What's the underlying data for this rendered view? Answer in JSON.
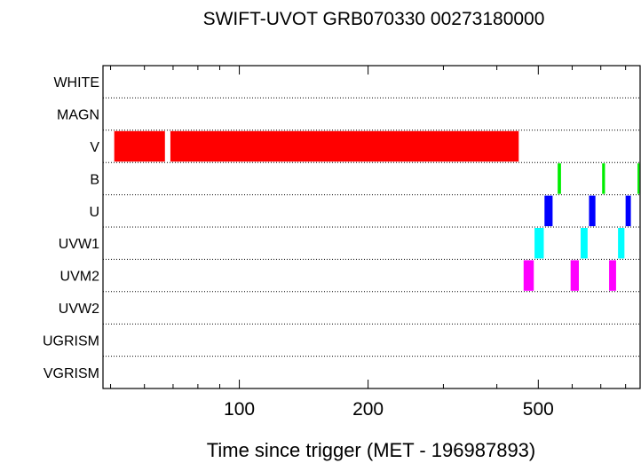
{
  "chart_data": {
    "type": "timeline",
    "title": "SWIFT-UVOT GRB070330 00273180000",
    "xlabel": "Time since trigger (MET - 196987893)",
    "x_scale": "log",
    "xlim": [
      48,
      865
    ],
    "x_ticks": [
      100,
      200,
      500
    ],
    "x_tick_labels": [
      "100",
      "200",
      "500"
    ],
    "rows": [
      "WHITE",
      "MAGN",
      "V",
      "B",
      "U",
      "UVW1",
      "UVM2",
      "UVW2",
      "UGRISM",
      "VGRISM"
    ],
    "colors": {
      "V": "#ff0000",
      "B": "#00ee00",
      "U": "#0000ff",
      "UVW1": "#00ffff",
      "UVM2": "#ff00ff"
    },
    "exposures": [
      {
        "filter": "V",
        "start": 51,
        "end": 67
      },
      {
        "filter": "V",
        "start": 69,
        "end": 450
      },
      {
        "filter": "B",
        "start": 555,
        "end": 565
      },
      {
        "filter": "B",
        "start": 705,
        "end": 716
      },
      {
        "filter": "B",
        "start": 853,
        "end": 862
      },
      {
        "filter": "U",
        "start": 517,
        "end": 540
      },
      {
        "filter": "U",
        "start": 657,
        "end": 680
      },
      {
        "filter": "U",
        "start": 800,
        "end": 823
      },
      {
        "filter": "UVW1",
        "start": 490,
        "end": 515
      },
      {
        "filter": "UVW1",
        "start": 628,
        "end": 652
      },
      {
        "filter": "UVW1",
        "start": 768,
        "end": 795
      },
      {
        "filter": "UVM2",
        "start": 462,
        "end": 488
      },
      {
        "filter": "UVM2",
        "start": 595,
        "end": 622
      },
      {
        "filter": "UVM2",
        "start": 732,
        "end": 760
      }
    ]
  }
}
